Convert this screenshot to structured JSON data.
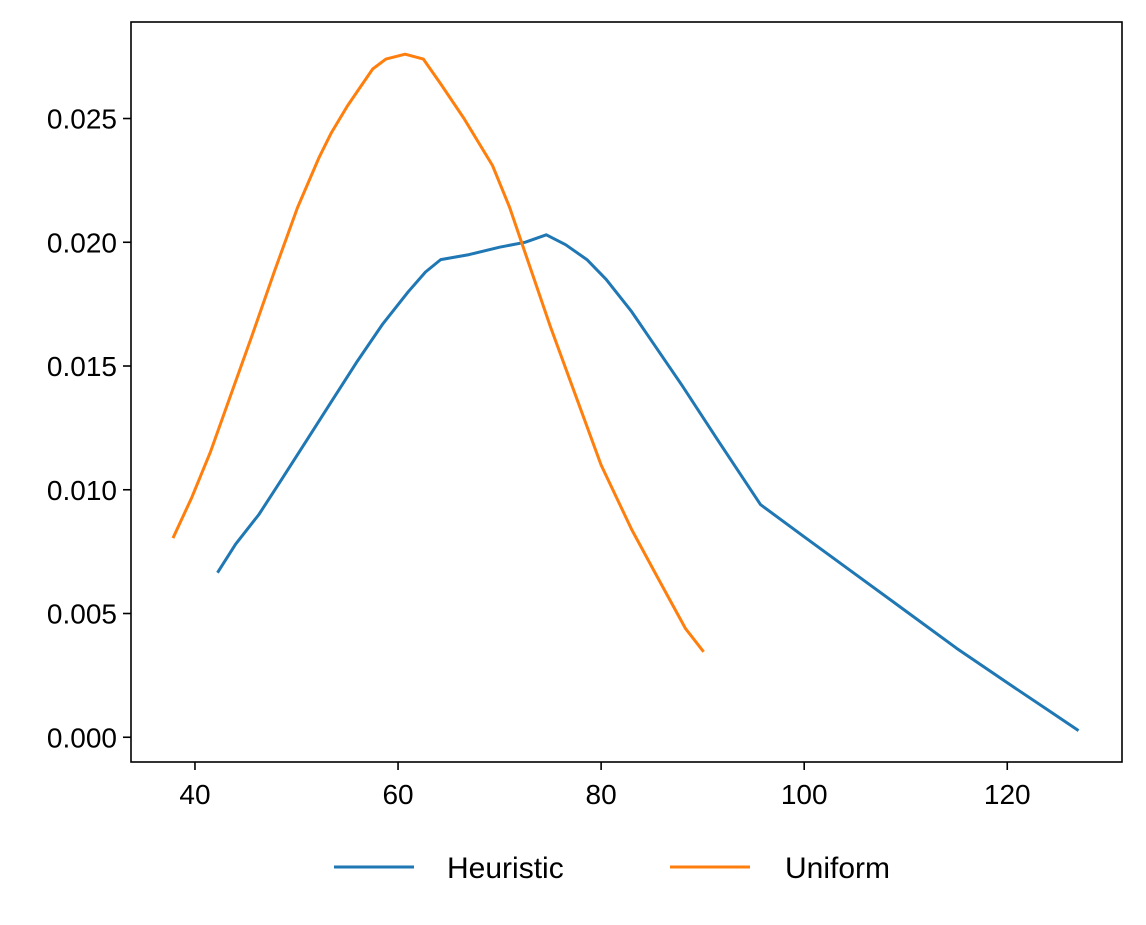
{
  "chart_data": {
    "type": "line",
    "title": "",
    "xlabel": "",
    "ylabel": "",
    "xlim": [
      33.7,
      131.3
    ],
    "ylim": [
      -0.001,
      0.0289
    ],
    "xticks": [
      40,
      60,
      80,
      100,
      120
    ],
    "xtick_labels": [
      "40",
      "60",
      "80",
      "100",
      "120"
    ],
    "yticks": [
      0.0,
      0.005,
      0.01,
      0.015,
      0.02,
      0.025
    ],
    "ytick_labels": [
      "0.000",
      "0.005",
      "0.010",
      "0.015",
      "0.020",
      "0.025"
    ],
    "grid": false,
    "legend_position": "bottom-center",
    "series": [
      {
        "name": "Heuristic",
        "color": "#1f77b4",
        "points": [
          [
            42.3,
            0.0067
          ],
          [
            44.0,
            0.0078
          ],
          [
            46.3,
            0.009
          ],
          [
            48.5,
            0.0104
          ],
          [
            51.0,
            0.012
          ],
          [
            53.5,
            0.0136
          ],
          [
            56.0,
            0.0152
          ],
          [
            58.5,
            0.0167
          ],
          [
            61.0,
            0.018
          ],
          [
            62.7,
            0.0188
          ],
          [
            64.2,
            0.0193
          ],
          [
            67.0,
            0.0195
          ],
          [
            70.0,
            0.0198
          ],
          [
            72.5,
            0.02
          ],
          [
            74.6,
            0.0203
          ],
          [
            76.5,
            0.0199
          ],
          [
            78.6,
            0.0193
          ],
          [
            80.5,
            0.0185
          ],
          [
            83.0,
            0.0172
          ],
          [
            85.0,
            0.016
          ],
          [
            88.0,
            0.0142
          ],
          [
            91.5,
            0.012
          ],
          [
            95.7,
            0.0094
          ],
          [
            100.0,
            0.0081
          ],
          [
            105.0,
            0.0066
          ],
          [
            110.0,
            0.0051
          ],
          [
            115.0,
            0.0036
          ],
          [
            120.0,
            0.0022
          ],
          [
            124.0,
            0.0011
          ],
          [
            126.9,
            0.0003
          ]
        ]
      },
      {
        "name": "Uniform",
        "color": "#ff7f0e",
        "points": [
          [
            37.9,
            0.0081
          ],
          [
            39.7,
            0.0097
          ],
          [
            41.5,
            0.0115
          ],
          [
            43.5,
            0.0138
          ],
          [
            45.6,
            0.0162
          ],
          [
            47.8,
            0.0188
          ],
          [
            50.1,
            0.0214
          ],
          [
            52.2,
            0.0234
          ],
          [
            53.4,
            0.0244
          ],
          [
            55.0,
            0.0255
          ],
          [
            56.5,
            0.0264
          ],
          [
            57.5,
            0.027
          ],
          [
            58.8,
            0.0274
          ],
          [
            60.7,
            0.0276
          ],
          [
            62.5,
            0.0274
          ],
          [
            64.2,
            0.0264
          ],
          [
            66.5,
            0.025
          ],
          [
            69.3,
            0.0231
          ],
          [
            71.0,
            0.0214
          ],
          [
            73.0,
            0.019
          ],
          [
            75.0,
            0.0166
          ],
          [
            77.5,
            0.0138
          ],
          [
            80.0,
            0.011
          ],
          [
            83.0,
            0.0084
          ],
          [
            85.5,
            0.0065
          ],
          [
            88.3,
            0.0044
          ],
          [
            90.0,
            0.0035
          ]
        ]
      }
    ]
  }
}
